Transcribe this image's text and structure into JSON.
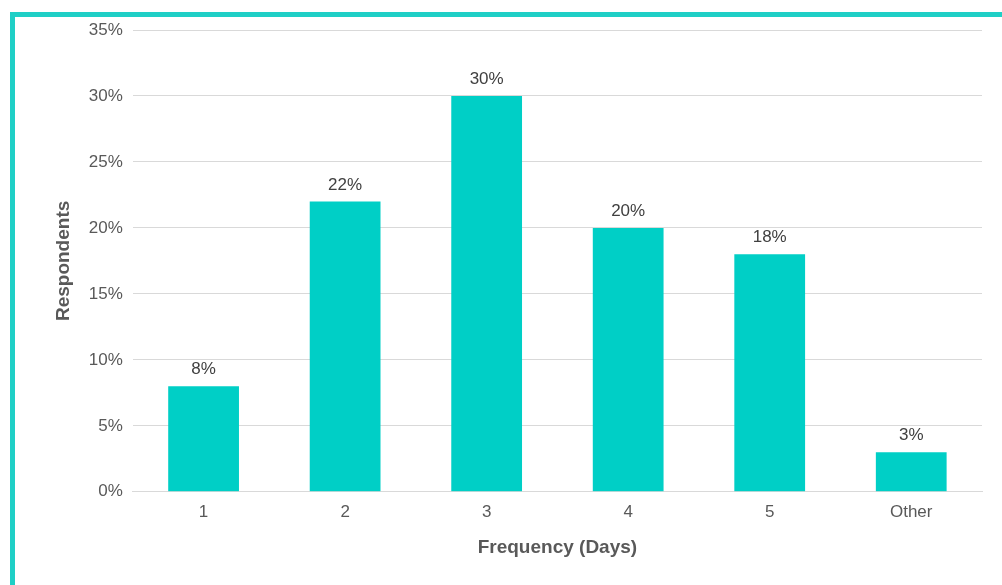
{
  "chart_data": {
    "type": "bar",
    "xlabel": "Frequency (Days)",
    "ylabel": "Respondents",
    "categories": [
      "1",
      "2",
      "3",
      "4",
      "5",
      "Other"
    ],
    "values": [
      8,
      22,
      30,
      20,
      18,
      3
    ],
    "value_labels": [
      "8%",
      "22%",
      "30%",
      "20%",
      "18%",
      "3%"
    ],
    "color": "#00cfc6",
    "ylim": [
      0,
      35
    ],
    "yticks": [
      {
        "value": 0,
        "label": "0%"
      },
      {
        "value": 5,
        "label": "5%"
      },
      {
        "value": 10,
        "label": "10%"
      },
      {
        "value": 15,
        "label": "15%"
      },
      {
        "value": 20,
        "label": "20%"
      },
      {
        "value": 25,
        "label": "25%"
      },
      {
        "value": 30,
        "label": "30%"
      },
      {
        "value": 35,
        "label": "35%"
      }
    ],
    "grid": "y",
    "legend": false
  }
}
